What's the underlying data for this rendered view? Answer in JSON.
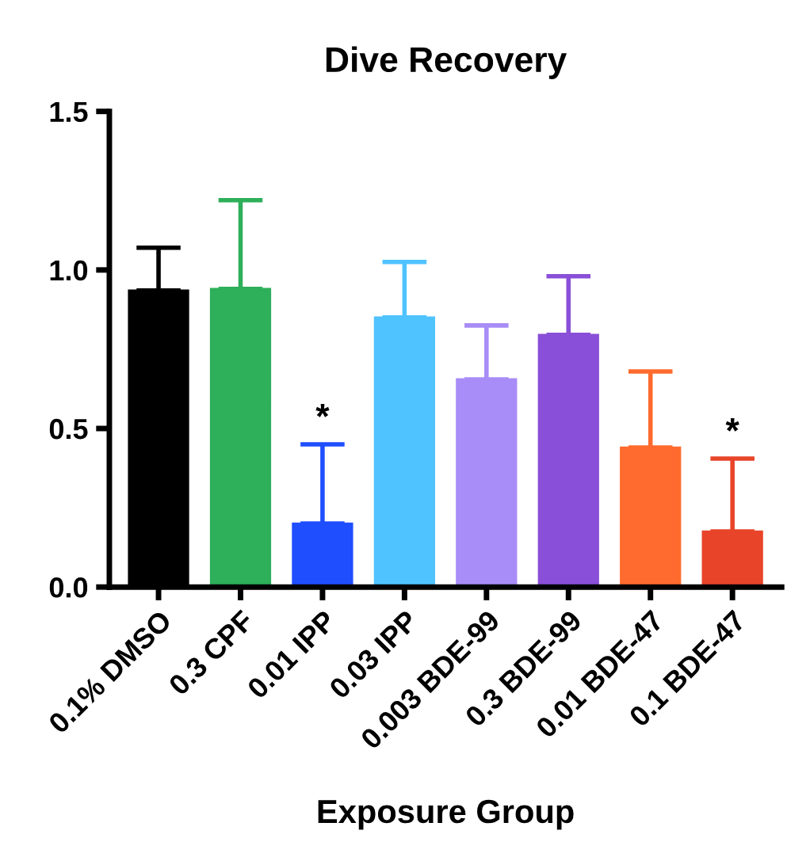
{
  "chart_data": {
    "type": "bar",
    "title": "Dive Recovery",
    "xlabel": "Exposure Group",
    "categories": [
      "0.1% DMSO",
      "0.3 CPF",
      "0.01 IPP",
      "0.03 IPP",
      "0.003 BDE-99",
      "0.3 BDE-99",
      "0.01 BDE-47",
      "0.1 BDE-47"
    ],
    "values": [
      0.935,
      0.94,
      0.2,
      0.85,
      0.655,
      0.795,
      0.44,
      0.175
    ],
    "errors": [
      [
        0.935,
        1.07
      ],
      [
        0.94,
        1.22
      ],
      [
        0.2,
        0.45
      ],
      [
        0.85,
        1.025
      ],
      [
        0.655,
        0.825
      ],
      [
        0.795,
        0.98
      ],
      [
        0.44,
        0.68
      ],
      [
        0.175,
        0.405
      ]
    ],
    "colors": [
      "#000000",
      "#2eaf5a",
      "#1f4eff",
      "#4fc3ff",
      "#a88cf7",
      "#8a4fd8",
      "#ff6b2e",
      "#e8442a"
    ],
    "ylim": [
      0,
      1.5
    ],
    "yticks": [
      {
        "value": 0,
        "label": "0.0"
      },
      {
        "value": 0.5,
        "label": "0.5"
      },
      {
        "value": 1.0,
        "label": "1.0"
      },
      {
        "value": 1.5,
        "label": "1.5"
      }
    ],
    "annotations": [
      {
        "text": "*",
        "x": "0.01 IPP",
        "y": 0.45
      },
      {
        "text": "*",
        "x": "0.1 BDE-47",
        "y": 0.405
      }
    ],
    "grid": false,
    "legend": false
  }
}
